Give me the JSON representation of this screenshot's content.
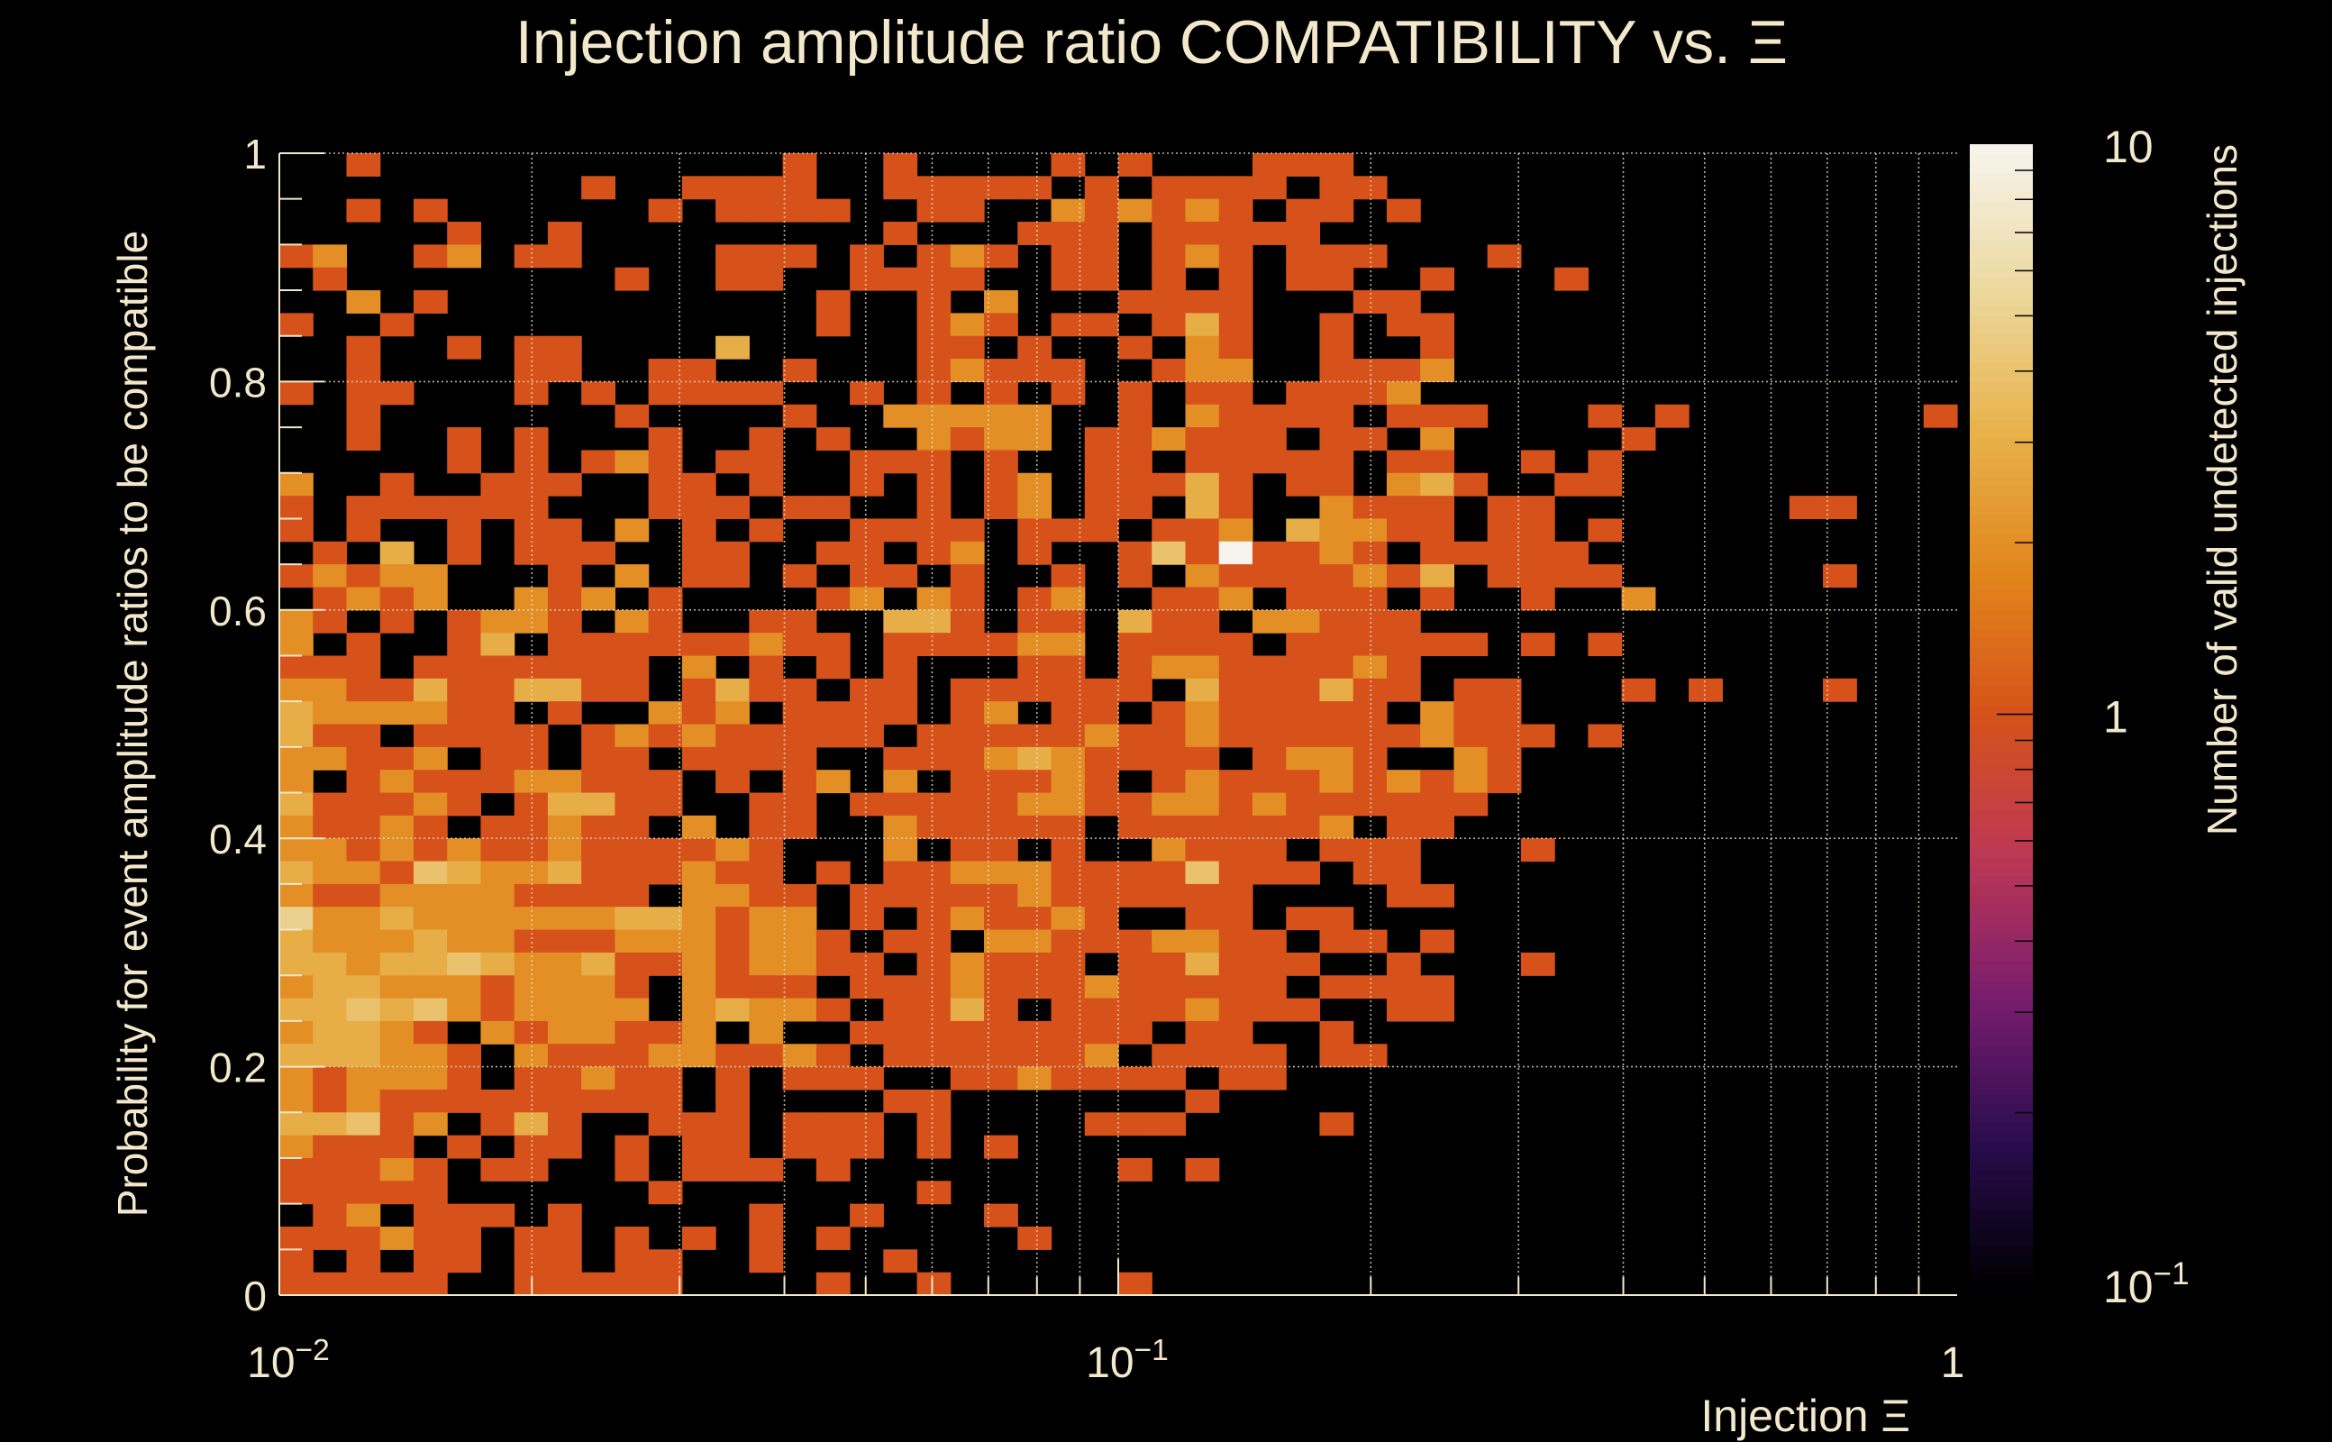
{
  "chart_data": {
    "type": "heatmap",
    "title": "Injection amplitude ratio COMPATIBILITY vs.  Ξ",
    "xlabel": "Injection Ξ",
    "ylabel": "Probability for event amplitude ratios to be compatible",
    "colorbar_label": "Number of valid undetected injections",
    "xscale": "log",
    "xlim": [
      0.01,
      1
    ],
    "ylim": [
      0,
      1
    ],
    "zscale": "log",
    "zlim": [
      0.1,
      10
    ],
    "grid": true,
    "x_bins": 50,
    "y_bins": 50,
    "x_tick_labels": [
      {
        "value": 0.01,
        "base": "10",
        "exp": "−2"
      },
      {
        "value": 0.1,
        "base": "10",
        "exp": "−1"
      },
      {
        "value": 1,
        "base": "1",
        "exp": ""
      }
    ],
    "y_ticks": [
      0,
      0.2,
      0.4,
      0.6,
      0.8,
      1
    ],
    "y_tick_labels": [
      "0",
      "0.2",
      "0.4",
      "0.6",
      "0.8",
      "1"
    ],
    "colorbar_tick_labels": [
      {
        "value": 10,
        "base": "10",
        "exp": ""
      },
      {
        "value": 1,
        "base": "1",
        "exp": ""
      },
      {
        "value": 0.1,
        "base": "10",
        "exp": "−1"
      }
    ],
    "counts_note": "rows listed top (y=1) to bottom (y=0); each digit is a bin count, 9 means 10",
    "counts_rows": [
      "00100000000000010010000101000111000000000000000000",
      "00000000010011110011111010111101100000000000000000",
      "00101000000101111001100212121011010000000000000000",
      "00000100100000000010001110111110000000000000000000",
      "12001201100001110101210110121011100010000000000000",
      "01000000001001100111100110101011001000100000000000",
      "00201000000000001001020001111000110000000000000000",
      "10010000000000001001210110131001011000000000000000",
      "00100101100003000001101001021001001000000000000000",
      "00100001100110010001211100122001112000000000000000",
      "10110001010111100101010101011011120000000000000000",
      "00100000001000010022222001021111011100010100000001",
      "00100101000100101002122011211101102000001000000000",
      "00000101012101100111010011011111011001010000000000",
      "20010011100110100101012011131011023100110000000000",
      "10111111000111011001012011031002111011000000011000",
      "10100101102010100111101110112032211011010000000000",
      "01030101110011001101201001419112101111100000000000",
      "12122000102011010110100101021111213011110000001000",
      "01212002120100001202101200112011101001002000000000",
      "21010122102100110033101103110221110000000000000000",
      "20100130111111211011112201111011111101010000000000",
      "11101111111020101010001101221111210000000000000000",
      "22113113311013110110111111031113110110001010001000",
      "32222110100212011110120110121111102110000000000000",
      "31101111012121111101111121121111112111010000000000",
      "22112011011011110011123211110122100210000000000000",
      "20121112211101012020111210121112121210000000000000",
      "31112101331100110111112211221211111100000000000000",
      "21121011211020110021111101111112011000000000000000",
      "22121211211112100020110100211101110001000000000000",
      "32214322311121101011222111141110110000000000000000",
      "21122221111022110111112111111000011000000000000000",
      "52232222223321220101211210011011000000000000000000",
      "32223221112221221011022111221101101000000000000000",
      "33233432231121221101211101131110010001000000000000",
      "23322212221021110111211121111101111000000000000000",
      "33434212222023221011310111121110011000000000000000",
      "23321021221120200111111111011001000000000000000000",
      "33322102111221121011111120111101100000000000000000",
      "21222101121101011100112111101100000000000000000000",
      "21211111111101000011000000010000000000000000000000",
      "33412013100111011101000011100001000000000000000000",
      "21110101101011011101010000000000000000000000000000",
      "11121011001011101000000001010000000000000000000000",
      "11111000000100000001000000000000000000000000000000",
      "01201110100000100100010000000000000000000000000000",
      "11121101101010101000001000000000000000000000000000",
      "10101101101100100010000000000000000000000000000000",
      "11111001111100001001000001000000000000000000000000"
    ],
    "colormap": [
      "#000004",
      "#2a0c4e",
      "#781c6d",
      "#bc3754",
      "#d6521a",
      "#e2861c",
      "#e8b24c",
      "#ecd9a0",
      "#f7f4ee"
    ],
    "text_color": "#f3e8cc",
    "background": "#000000"
  }
}
